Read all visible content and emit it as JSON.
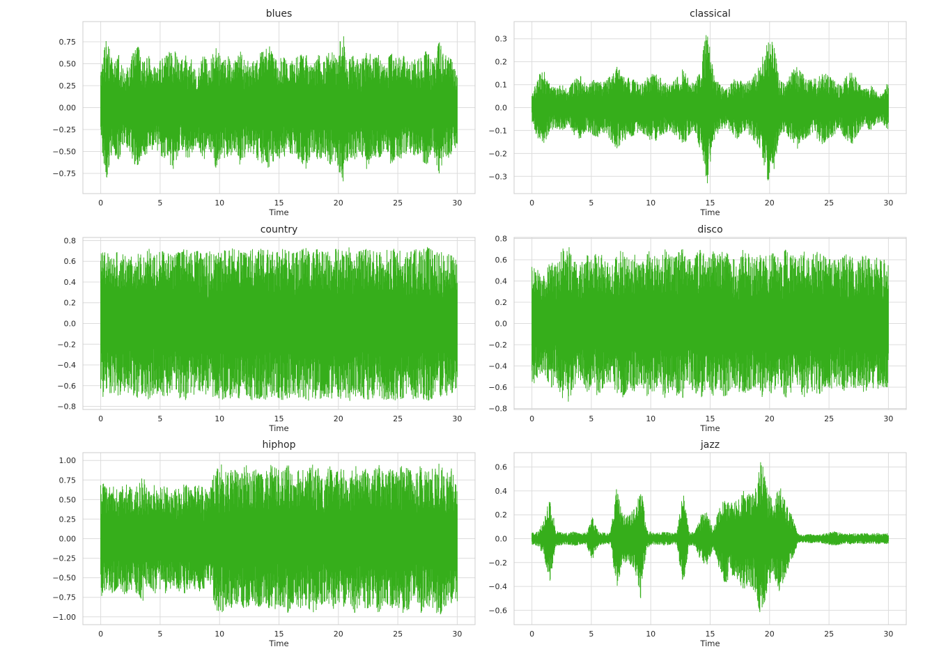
{
  "figure": {
    "background": "#ffffff",
    "axes_facecolor": "#ffffff",
    "grid_color": "#dcdcdc",
    "line_color": "#36ae1b"
  },
  "chart_data": [
    {
      "type": "line",
      "title": "blues",
      "xlabel": "Time",
      "ylabel": "",
      "grid": true,
      "xlim": [
        -1.5,
        31.5
      ],
      "ylim": [
        -0.98,
        0.98
      ],
      "xticks": [
        0,
        5,
        10,
        15,
        20,
        25,
        30
      ],
      "yticks": [
        0.75,
        0.5,
        0.25,
        0.0,
        -0.25,
        -0.5,
        -0.75
      ],
      "yticklabels": [
        "0.75",
        "0.50",
        "0.25",
        "0.00",
        "−0.25",
        "−0.50",
        "−0.75"
      ],
      "series": [
        {
          "x": [
            0,
            30
          ],
          "envelope_top": [
            0.45,
            0.8,
            0.5,
            0.6,
            0.4,
            0.55,
            0.75,
            0.5,
            0.6,
            0.45,
            0.55,
            0.6,
            0.7,
            0.5,
            0.6,
            0.55,
            0.4,
            0.6,
            0.5,
            0.7,
            0.55,
            0.6,
            0.5,
            0.65,
            0.55,
            0.5,
            0.6,
            0.65,
            0.7,
            0.55,
            0.6,
            0.5,
            0.55,
            0.6,
            0.7,
            0.5,
            0.6,
            0.55,
            0.65,
            0.6,
            0.88,
            0.55,
            0.6,
            0.5,
            0.7,
            0.55,
            0.6,
            0.5,
            0.65,
            0.55,
            0.6,
            0.5,
            0.55,
            0.6,
            0.65,
            0.5,
            0.75,
            0.6,
            0.55,
            0.45
          ],
          "envelope_bottom": [
            -0.45,
            -0.8,
            -0.5,
            -0.6,
            -0.4,
            -0.55,
            -0.7,
            -0.5,
            -0.6,
            -0.45,
            -0.55,
            -0.6,
            -0.7,
            -0.5,
            -0.6,
            -0.55,
            -0.4,
            -0.6,
            -0.5,
            -0.7,
            -0.55,
            -0.6,
            -0.5,
            -0.65,
            -0.55,
            -0.5,
            -0.6,
            -0.65,
            -0.7,
            -0.55,
            -0.6,
            -0.5,
            -0.55,
            -0.6,
            -0.7,
            -0.5,
            -0.6,
            -0.55,
            -0.65,
            -0.6,
            -0.88,
            -0.55,
            -0.6,
            -0.5,
            -0.7,
            -0.55,
            -0.6,
            -0.5,
            -0.65,
            -0.55,
            -0.6,
            -0.5,
            -0.55,
            -0.6,
            -0.65,
            -0.5,
            -0.75,
            -0.6,
            -0.55,
            -0.45
          ]
        }
      ]
    },
    {
      "type": "line",
      "title": "classical",
      "xlabel": "Time",
      "ylabel": "",
      "grid": true,
      "xlim": [
        -1.5,
        31.5
      ],
      "ylim": [
        -0.375,
        0.375
      ],
      "xticks": [
        0,
        5,
        10,
        15,
        20,
        25,
        30
      ],
      "yticks": [
        0.3,
        0.2,
        0.1,
        0.0,
        -0.1,
        -0.2,
        -0.3
      ],
      "yticklabels": [
        "0.3",
        "0.2",
        "0.1",
        "0.0",
        "−0.1",
        "−0.2",
        "−0.3"
      ],
      "series": [
        {
          "x": [
            0,
            30
          ],
          "envelope_top": [
            0.06,
            0.14,
            0.16,
            0.1,
            0.09,
            0.1,
            0.08,
            0.12,
            0.14,
            0.1,
            0.12,
            0.13,
            0.11,
            0.14,
            0.18,
            0.15,
            0.13,
            0.12,
            0.1,
            0.13,
            0.15,
            0.14,
            0.11,
            0.1,
            0.13,
            0.17,
            0.12,
            0.1,
            0.2,
            0.34,
            0.16,
            0.1,
            0.09,
            0.11,
            0.14,
            0.1,
            0.12,
            0.15,
            0.2,
            0.32,
            0.28,
            0.12,
            0.1,
            0.16,
            0.18,
            0.14,
            0.12,
            0.13,
            0.16,
            0.14,
            0.12,
            0.1,
            0.14,
            0.16,
            0.11,
            0.08,
            0.1,
            0.07,
            0.06,
            0.12
          ],
          "envelope_bottom": [
            -0.06,
            -0.14,
            -0.16,
            -0.1,
            -0.09,
            -0.1,
            -0.08,
            -0.12,
            -0.14,
            -0.1,
            -0.12,
            -0.13,
            -0.11,
            -0.14,
            -0.18,
            -0.15,
            -0.13,
            -0.12,
            -0.1,
            -0.13,
            -0.15,
            -0.14,
            -0.11,
            -0.1,
            -0.13,
            -0.17,
            -0.12,
            -0.1,
            -0.2,
            -0.34,
            -0.16,
            -0.1,
            -0.09,
            -0.11,
            -0.14,
            -0.1,
            -0.12,
            -0.15,
            -0.2,
            -0.32,
            -0.28,
            -0.12,
            -0.1,
            -0.16,
            -0.18,
            -0.14,
            -0.12,
            -0.13,
            -0.16,
            -0.14,
            -0.12,
            -0.1,
            -0.14,
            -0.16,
            -0.11,
            -0.08,
            -0.1,
            -0.07,
            -0.06,
            -0.12
          ]
        }
      ]
    },
    {
      "type": "line",
      "title": "country",
      "xlabel": "Time",
      "ylabel": "",
      "grid": true,
      "xlim": [
        -1.5,
        31.5
      ],
      "ylim": [
        -0.83,
        0.83
      ],
      "xticks": [
        0,
        5,
        10,
        15,
        20,
        25,
        30
      ],
      "yticks": [
        0.8,
        0.6,
        0.4,
        0.2,
        0.0,
        -0.2,
        -0.4,
        -0.6,
        -0.8
      ],
      "yticklabels": [
        "0.8",
        "0.6",
        "0.4",
        "0.2",
        "0.0",
        "−0.2",
        "−0.4",
        "−0.6",
        "−0.8"
      ],
      "series": [
        {
          "x": [
            0,
            30
          ],
          "envelope_top": [
            0.7,
            0.68,
            0.66,
            0.7,
            0.65,
            0.68,
            0.7,
            0.67,
            0.72,
            0.66,
            0.7,
            0.68,
            0.65,
            0.7,
            0.72,
            0.68,
            0.7,
            0.66,
            0.7,
            0.68,
            0.72,
            0.69,
            0.74,
            0.7,
            0.68,
            0.72,
            0.7,
            0.74,
            0.7,
            0.68,
            0.72,
            0.7,
            0.68,
            0.7,
            0.74,
            0.7,
            0.72,
            0.68,
            0.7,
            0.72,
            0.7,
            0.74,
            0.68,
            0.7,
            0.72,
            0.7,
            0.68,
            0.72,
            0.7,
            0.74,
            0.7,
            0.68,
            0.72,
            0.7,
            0.74,
            0.7,
            0.68,
            0.7,
            0.66,
            0.6
          ],
          "envelope_bottom": [
            -0.72,
            -0.7,
            -0.66,
            -0.7,
            -0.65,
            -0.7,
            -0.72,
            -0.67,
            -0.74,
            -0.66,
            -0.72,
            -0.7,
            -0.65,
            -0.72,
            -0.74,
            -0.7,
            -0.72,
            -0.66,
            -0.72,
            -0.7,
            -0.74,
            -0.7,
            -0.75,
            -0.72,
            -0.7,
            -0.74,
            -0.72,
            -0.75,
            -0.72,
            -0.7,
            -0.74,
            -0.72,
            -0.7,
            -0.72,
            -0.76,
            -0.72,
            -0.74,
            -0.7,
            -0.72,
            -0.74,
            -0.72,
            -0.76,
            -0.7,
            -0.72,
            -0.74,
            -0.72,
            -0.7,
            -0.74,
            -0.72,
            -0.75,
            -0.72,
            -0.7,
            -0.74,
            -0.72,
            -0.75,
            -0.72,
            -0.7,
            -0.72,
            -0.68,
            -0.62
          ]
        }
      ]
    },
    {
      "type": "line",
      "title": "disco",
      "xlabel": "Time",
      "ylabel": "",
      "grid": true,
      "xlim": [
        -1.5,
        31.5
      ],
      "ylim": [
        -0.81,
        0.81
      ],
      "xticks": [
        0,
        5,
        10,
        15,
        20,
        25,
        30
      ],
      "yticks": [
        0.8,
        0.6,
        0.4,
        0.2,
        0.0,
        -0.2,
        -0.4,
        -0.6,
        -0.8
      ],
      "yticklabels": [
        "0.8",
        "0.6",
        "0.4",
        "0.2",
        "0.0",
        "−0.2",
        "−0.4",
        "−0.6",
        "−0.8"
      ],
      "series": [
        {
          "x": [
            0,
            30
          ],
          "envelope_top": [
            0.6,
            0.5,
            0.45,
            0.62,
            0.55,
            0.7,
            0.74,
            0.6,
            0.55,
            0.65,
            0.6,
            0.7,
            0.6,
            0.55,
            0.65,
            0.7,
            0.6,
            0.65,
            0.55,
            0.7,
            0.65,
            0.6,
            0.7,
            0.62,
            0.68,
            0.7,
            0.6,
            0.65,
            0.7,
            0.6,
            0.68,
            0.65,
            0.7,
            0.6,
            0.62,
            0.7,
            0.65,
            0.6,
            0.7,
            0.62,
            0.68,
            0.6,
            0.7,
            0.65,
            0.6,
            0.7,
            0.62,
            0.68,
            0.65,
            0.6,
            0.62,
            0.6,
            0.65,
            0.62,
            0.6,
            0.65,
            0.6,
            0.62,
            0.6,
            0.6
          ],
          "envelope_bottom": [
            -0.6,
            -0.5,
            -0.45,
            -0.62,
            -0.55,
            -0.7,
            -0.74,
            -0.6,
            -0.55,
            -0.65,
            -0.6,
            -0.7,
            -0.6,
            -0.55,
            -0.65,
            -0.7,
            -0.6,
            -0.65,
            -0.55,
            -0.7,
            -0.65,
            -0.6,
            -0.7,
            -0.62,
            -0.68,
            -0.7,
            -0.6,
            -0.65,
            -0.7,
            -0.6,
            -0.68,
            -0.65,
            -0.7,
            -0.6,
            -0.62,
            -0.7,
            -0.65,
            -0.6,
            -0.7,
            -0.62,
            -0.68,
            -0.6,
            -0.7,
            -0.65,
            -0.6,
            -0.7,
            -0.62,
            -0.68,
            -0.65,
            -0.6,
            -0.62,
            -0.6,
            -0.65,
            -0.62,
            -0.6,
            -0.65,
            -0.6,
            -0.62,
            -0.6,
            -0.6
          ]
        }
      ]
    },
    {
      "type": "line",
      "title": "hiphop",
      "xlabel": "Time",
      "ylabel": "",
      "grid": true,
      "xlim": [
        -1.5,
        31.5
      ],
      "ylim": [
        -1.1,
        1.1
      ],
      "xticks": [
        0,
        5,
        10,
        15,
        20,
        25,
        30
      ],
      "yticks": [
        1.0,
        0.75,
        0.5,
        0.25,
        0.0,
        -0.25,
        -0.5,
        -0.75,
        -1.0
      ],
      "yticklabels": [
        "1.00",
        "0.75",
        "0.50",
        "0.25",
        "0.00",
        "−0.25",
        "−0.50",
        "−0.75",
        "−1.00"
      ],
      "series": [
        {
          "x": [
            0,
            30
          ],
          "envelope_top": [
            0.75,
            0.65,
            0.7,
            0.6,
            0.72,
            0.65,
            0.7,
            0.8,
            0.6,
            0.7,
            0.65,
            0.72,
            0.6,
            0.68,
            0.7,
            0.62,
            0.7,
            0.65,
            0.6,
            0.9,
            0.95,
            0.85,
            0.9,
            0.8,
            0.95,
            0.85,
            0.9,
            0.8,
            0.95,
            0.9,
            0.85,
            0.95,
            0.8,
            0.9,
            0.85,
            0.95,
            0.9,
            0.8,
            0.95,
            0.85,
            0.9,
            0.8,
            0.95,
            0.85,
            0.9,
            0.85,
            0.95,
            0.8,
            0.9,
            0.85,
            0.95,
            0.9,
            0.8,
            0.95,
            0.85,
            0.9,
            1.0,
            0.85,
            0.9,
            0.8
          ],
          "envelope_bottom": [
            -0.75,
            -0.65,
            -0.7,
            -0.6,
            -0.72,
            -0.65,
            -0.7,
            -0.8,
            -0.6,
            -0.7,
            -0.65,
            -0.72,
            -0.6,
            -0.68,
            -0.7,
            -0.62,
            -0.7,
            -0.65,
            -0.6,
            -0.92,
            -0.95,
            -0.85,
            -0.9,
            -0.8,
            -0.95,
            -0.85,
            -0.9,
            -0.8,
            -0.95,
            -0.9,
            -0.85,
            -0.95,
            -0.8,
            -0.9,
            -0.85,
            -0.95,
            -0.9,
            -0.8,
            -0.95,
            -0.85,
            -0.9,
            -0.8,
            -0.95,
            -0.85,
            -0.9,
            -0.85,
            -0.95,
            -0.8,
            -0.9,
            -0.85,
            -0.95,
            -0.9,
            -0.8,
            -0.95,
            -0.85,
            -0.9,
            -1.0,
            -0.85,
            -0.9,
            -0.8
          ]
        }
      ]
    },
    {
      "type": "line",
      "title": "jazz",
      "xlabel": "Time",
      "ylabel": "",
      "grid": true,
      "xlim": [
        -1.5,
        31.5
      ],
      "ylim": [
        -0.72,
        0.72
      ],
      "xticks": [
        0,
        5,
        10,
        15,
        20,
        25,
        30
      ],
      "yticks": [
        0.6,
        0.4,
        0.2,
        0.0,
        -0.2,
        -0.4,
        -0.6
      ],
      "yticklabels": [
        "0.6",
        "0.4",
        "0.2",
        "0.0",
        "−0.2",
        "−0.4",
        "−0.6"
      ],
      "series": [
        {
          "x": [
            0,
            30
          ],
          "envelope_top": [
            0.05,
            0.06,
            0.15,
            0.36,
            0.08,
            0.05,
            0.05,
            0.06,
            0.05,
            0.05,
            0.18,
            0.06,
            0.05,
            0.05,
            0.42,
            0.2,
            0.2,
            0.25,
            0.45,
            0.08,
            0.05,
            0.05,
            0.06,
            0.05,
            0.05,
            0.4,
            0.06,
            0.06,
            0.2,
            0.22,
            0.08,
            0.25,
            0.35,
            0.3,
            0.32,
            0.4,
            0.38,
            0.42,
            0.68,
            0.4,
            0.3,
            0.45,
            0.3,
            0.2,
            0.04,
            0.03,
            0.04,
            0.03,
            0.04,
            0.05,
            0.06,
            0.05,
            0.04,
            0.05,
            0.04,
            0.05,
            0.04,
            0.05,
            0.04,
            0.05
          ],
          "envelope_bottom": [
            -0.05,
            -0.06,
            -0.15,
            -0.36,
            -0.08,
            -0.05,
            -0.05,
            -0.06,
            -0.05,
            -0.05,
            -0.18,
            -0.06,
            -0.05,
            -0.05,
            -0.42,
            -0.2,
            -0.2,
            -0.25,
            -0.5,
            -0.08,
            -0.05,
            -0.05,
            -0.06,
            -0.05,
            -0.05,
            -0.4,
            -0.06,
            -0.06,
            -0.2,
            -0.22,
            -0.08,
            -0.25,
            -0.38,
            -0.3,
            -0.35,
            -0.42,
            -0.4,
            -0.45,
            -0.68,
            -0.42,
            -0.3,
            -0.45,
            -0.3,
            -0.2,
            -0.04,
            -0.03,
            -0.04,
            -0.03,
            -0.04,
            -0.05,
            -0.06,
            -0.05,
            -0.04,
            -0.05,
            -0.04,
            -0.05,
            -0.04,
            -0.05,
            -0.04,
            -0.05
          ]
        }
      ]
    }
  ]
}
